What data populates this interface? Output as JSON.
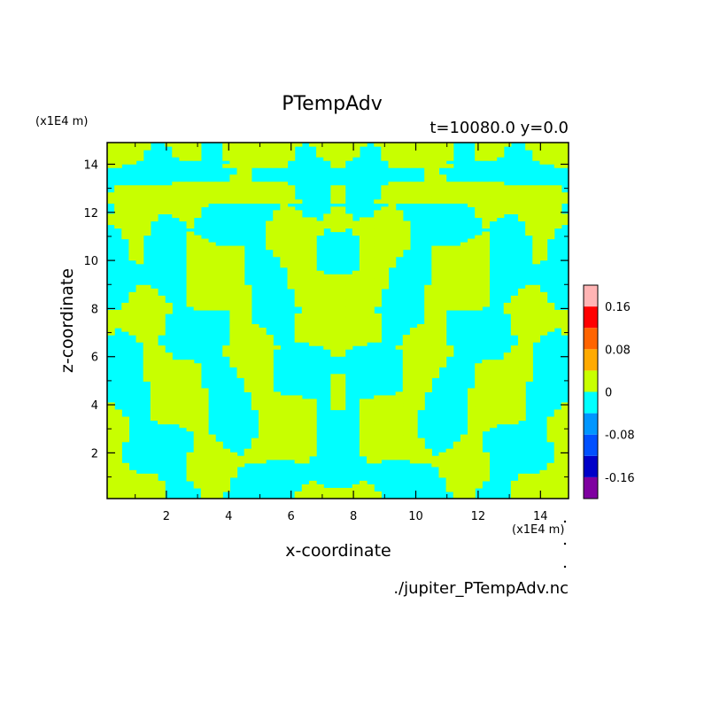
{
  "chart_data": {
    "type": "heatmap",
    "title": "PTempAdv",
    "subtitle": "t=10080.0 y=0.0",
    "xlabel": "x-coordinate",
    "ylabel": "z-coordinate",
    "x_unit": "(x1E4 m)",
    "y_unit": "(x1E4 m)",
    "source_file": "./jupiter_PTempAdv.nc",
    "xlim": [
      0.1,
      14.9
    ],
    "ylim": [
      0.1,
      14.9
    ],
    "x_ticks": [
      2,
      4,
      6,
      8,
      10,
      12,
      14
    ],
    "y_ticks": [
      2,
      4,
      6,
      8,
      10,
      12,
      14
    ],
    "colorbar": {
      "tick_labels": [
        "0.16",
        "0.08",
        "0",
        "-0.08",
        "-0.16"
      ],
      "tick_values": [
        0.16,
        0.08,
        0,
        -0.08,
        -0.16
      ],
      "levels": [
        -0.2,
        -0.16,
        -0.12,
        -0.08,
        -0.04,
        0,
        0.04,
        0.08,
        0.12,
        0.16,
        0.2
      ],
      "colors": [
        "#7f00a0",
        "#0000c8",
        "#0050ff",
        "#0096ff",
        "#00ffff",
        "#c8ff00",
        "#ffaa00",
        "#ff6400",
        "#ff0000",
        "#ffb4b4"
      ]
    },
    "pattern": "mirror-symmetric about x=7.5; two dominant levels (-0.04..0 cyan, 0..0.04 yellow-green)",
    "dominant_colors": {
      "negative": "#00ffff",
      "positive": "#c8ff00"
    }
  }
}
